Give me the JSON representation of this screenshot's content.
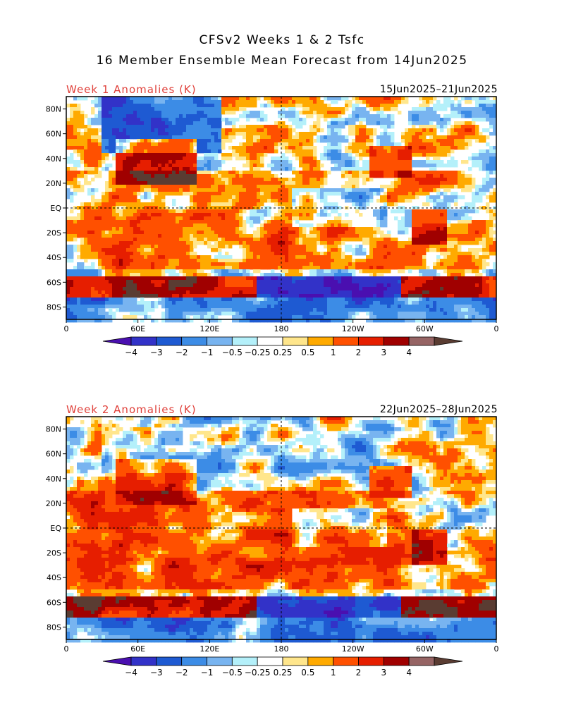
{
  "figure": {
    "title_line1": "CFSv2 Weeks 1 & 2 Tsfc",
    "title_line2": "16 Member Ensemble Mean Forecast from 14Jun2025"
  },
  "panels": [
    {
      "label": "Week 1 Anomalies (K)",
      "dates": "15Jun2025–21Jun2025"
    },
    {
      "label": "Week 2 Anomalies (K)",
      "dates": "22Jun2025–28Jun2025"
    }
  ],
  "axes": {
    "lat_labels": [
      "80N",
      "60N",
      "40N",
      "20N",
      "EQ",
      "20S",
      "40S",
      "60S",
      "80S"
    ],
    "lon_labels": [
      "0",
      "60E",
      "120E",
      "180",
      "120W",
      "60W",
      "0"
    ]
  },
  "colorbar": {
    "labels": [
      "−4",
      "−3",
      "−2",
      "−1",
      "−0.5",
      "−0.25",
      "0.25",
      "0.5",
      "1",
      "2",
      "3",
      "4"
    ],
    "colors": [
      "#4a0fb0",
      "#3232c8",
      "#1e5ad2",
      "#3c8ce6",
      "#78b4f0",
      "#b4f0fa",
      "#ffffff",
      "#ffe68c",
      "#ffaa00",
      "#ff5000",
      "#e61e00",
      "#a00000",
      "#966464",
      "#5a3c32"
    ]
  }
}
